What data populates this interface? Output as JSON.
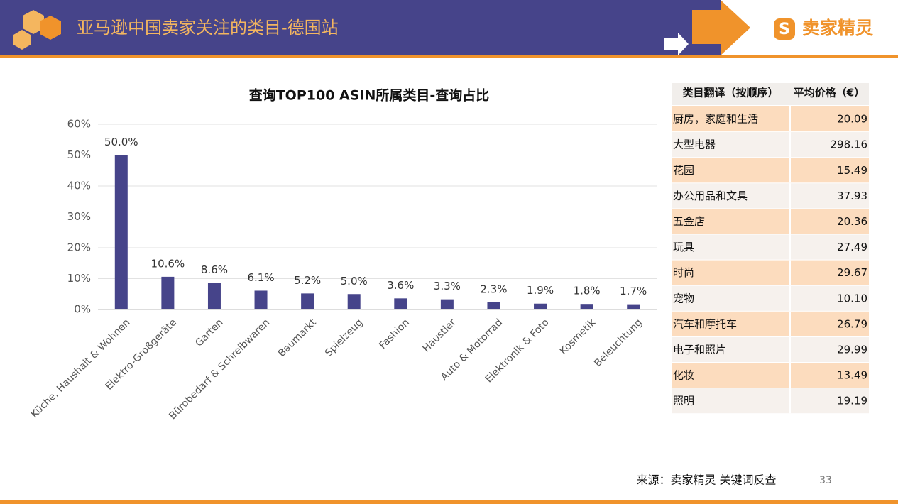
{
  "header": {
    "title": "亚马逊中国卖家关注的类目-德国站",
    "logo": "卖家精灵"
  },
  "chart_data": {
    "type": "bar",
    "title": "查询TOP100 ASIN所属类目-查询占比",
    "categories": [
      "Küche, Haushalt & Wohnen",
      "Elektro-Großgeräte",
      "Garten",
      "Bürobedarf & Schreibwaren",
      "Baumarkt",
      "Spielzeug",
      "Fashion",
      "Haustier",
      "Auto & Motorrad",
      "Elektronik & Foto",
      "Kosmetik",
      "Beleuchtung"
    ],
    "values": [
      50.0,
      10.6,
      8.6,
      6.1,
      5.2,
      5.0,
      3.6,
      3.3,
      2.3,
      1.9,
      1.8,
      1.7
    ],
    "value_labels": [
      "50.0%",
      "10.6%",
      "8.6%",
      "6.1%",
      "5.2%",
      "5.0%",
      "3.6%",
      "3.3%",
      "2.3%",
      "1.9%",
      "1.8%",
      "1.7%"
    ],
    "color": "#46448a",
    "ylim": [
      0,
      60
    ],
    "yticks": [
      {
        "value": 0,
        "label": "0%"
      },
      {
        "value": 10,
        "label": "10%"
      },
      {
        "value": 20,
        "label": "20%"
      },
      {
        "value": 30,
        "label": "30%"
      },
      {
        "value": 40,
        "label": "40%"
      },
      {
        "value": 50,
        "label": "50%"
      },
      {
        "value": 60,
        "label": "60%"
      }
    ],
    "grid": true
  },
  "table": {
    "header": [
      "类目翻译（按顺序）",
      "平均价格（€）"
    ],
    "rows": [
      [
        "厨房，家庭和生活",
        "20.09"
      ],
      [
        "大型电器",
        "298.16"
      ],
      [
        "花园",
        "15.49"
      ],
      [
        "办公用品和文具",
        "37.93"
      ],
      [
        "五金店",
        "20.36"
      ],
      [
        "玩具",
        "27.49"
      ],
      [
        "时尚",
        "29.67"
      ],
      [
        "宠物",
        "10.10"
      ],
      [
        "汽车和摩托车",
        "26.79"
      ],
      [
        "电子和照片",
        "29.99"
      ],
      [
        "化妆",
        "13.49"
      ],
      [
        "照明",
        "19.19"
      ]
    ]
  },
  "footer": {
    "source": "来源：卖家精灵 关键词反查",
    "page": "33"
  }
}
